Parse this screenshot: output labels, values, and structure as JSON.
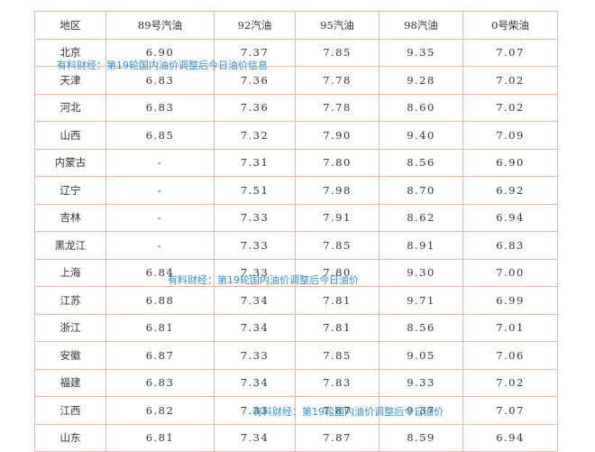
{
  "table": {
    "headers": [
      "地区",
      "89号汽油",
      "92汽油",
      "95汽油",
      "98汽油",
      "0号柴油"
    ],
    "rows": [
      [
        "北京",
        "6.90",
        "7.37",
        "7.85",
        "9.35",
        "7.07"
      ],
      [
        "天津",
        "6.83",
        "7.36",
        "7.78",
        "9.28",
        "7.02"
      ],
      [
        "河北",
        "6.83",
        "7.36",
        "7.78",
        "8.60",
        "7.02"
      ],
      [
        "山西",
        "6.85",
        "7.32",
        "7.90",
        "9.40",
        "7.09"
      ],
      [
        "内蒙古",
        "-",
        "7.31",
        "7.80",
        "8.56",
        "6.90"
      ],
      [
        "辽宁",
        "-",
        "7.51",
        "7.98",
        "8.70",
        "6.92"
      ],
      [
        "吉林",
        "-",
        "7.33",
        "7.91",
        "8.62",
        "6.94"
      ],
      [
        "黑龙江",
        "-",
        "7.33",
        "7.85",
        "8.91",
        "6.83"
      ],
      [
        "上海",
        "6.84",
        "7.33",
        "7.80",
        "9.30",
        "7.00"
      ],
      [
        "江苏",
        "6.88",
        "7.34",
        "7.81",
        "9.71",
        "6.99"
      ],
      [
        "浙江",
        "6.81",
        "7.34",
        "7.81",
        "8.56",
        "7.01"
      ],
      [
        "安徽",
        "6.87",
        "7.33",
        "7.85",
        "9.05",
        "7.06"
      ],
      [
        "福建",
        "6.83",
        "7.34",
        "7.83",
        "9.33",
        "7.02"
      ],
      [
        "江西",
        "6.82",
        "7.33",
        "7.87",
        "9.37",
        "7.07"
      ],
      [
        "山东",
        "6.81",
        "7.34",
        "7.87",
        "8.59",
        "6.94"
      ]
    ]
  },
  "watermarks": [
    "有料财经：第19轮国内油价调整后今日油价信息",
    "有料财经：第19轮国内油价调整后今日油价",
    "有料财经：第19轮国内油价调整后今日油价"
  ],
  "colors": {
    "border": "#f0b79e",
    "text": "#333333",
    "watermark": "#2e8fd6"
  }
}
